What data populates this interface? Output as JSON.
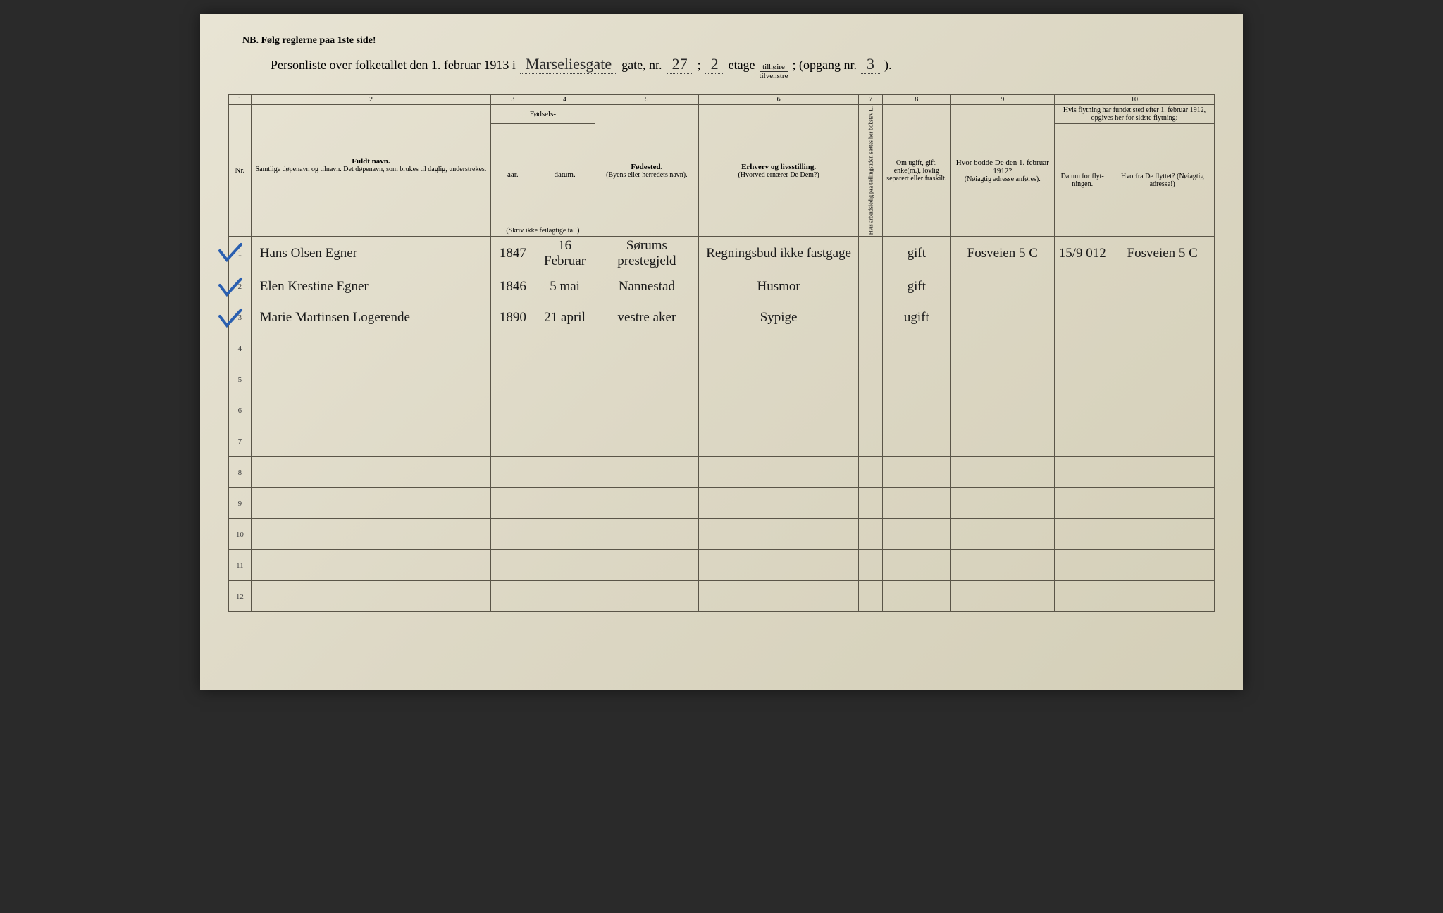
{
  "colors": {
    "paper_bg_start": "#e8e4d4",
    "paper_bg_end": "#d4cfb8",
    "border": "#5a5548",
    "ink": "#1a1a1a",
    "checkmark": "#2a5fb0"
  },
  "header": {
    "nb": "NB.  Følg reglerne paa 1ste side!",
    "title_prefix": "Personliste over folketallet den 1. februar 1913 i",
    "street": "Marseliesgate",
    "gate_label": "gate, nr.",
    "gate_nr": "27",
    "semicolon": ";",
    "etage_nr": "2",
    "etage_label": "etage",
    "frac_top": "tilhøire",
    "frac_bot": "tilvenstre",
    "opgang_label": "; (opgang nr.",
    "opgang_nr": "3",
    "opgang_close": ")."
  },
  "colnums": [
    "1",
    "2",
    "3",
    "4",
    "5",
    "6",
    "7",
    "8",
    "9",
    "10"
  ],
  "headers": {
    "nr": "Nr.",
    "fuldt_navn": "Fuldt navn.",
    "fuldt_sub": "Samtlige døpenavn og tilnavn. Det døpenavn, som brukes til daglig, understrekes.",
    "fodsels": "Fødsels-",
    "aar": "aar.",
    "datum": "datum.",
    "skriv": "(Skriv ikke feilagtige tal!)",
    "fodested": "Fødested.",
    "fodested_sub": "(Byens eller herredets navn).",
    "erhverv": "Erhverv og livsstilling.",
    "erhverv_sub": "(Hvorved ernærer De Dem?)",
    "col7": "Hvis arbeidsledig paa tællingstiden sættes her bokstav L.",
    "col8": "Om ugift, gift, enke(m.), lovlig separert eller fraskilt.",
    "col9": "Hvor bodde De den 1. februar 1912?",
    "col9_sub": "(Nøiagtig adresse anføres).",
    "col10": "Hvis flytning har fundet sted efter 1. februar 1912, opgives her for sidste flytning:",
    "col10a": "Datum for flyt-ningen.",
    "col10b": "Hvorfra De flyttet? (Nøiagtig adresse!)"
  },
  "rows": [
    {
      "nr": "1",
      "check": true,
      "name": "Hans Olsen Egner",
      "aar": "1847",
      "datum": "16 Februar",
      "fodested": "Sørums prestegjeld",
      "erhverv": "Regningsbud ikke fastgage",
      "col7": "",
      "col8": "gift",
      "col9": "Fosveien 5 C",
      "col10a": "15/9 012",
      "col10b": "Fosveien 5 C"
    },
    {
      "nr": "2",
      "check": true,
      "name": "Elen Krestine Egner",
      "aar": "1846",
      "datum": "5 mai",
      "fodested": "Nannestad",
      "erhverv": "Husmor",
      "col7": "",
      "col8": "gift",
      "col9": "",
      "col10a": "",
      "col10b": ""
    },
    {
      "nr": "3",
      "check": true,
      "name": "Marie Martinsen Logerende",
      "aar": "1890",
      "datum": "21 april",
      "fodested": "vestre aker",
      "erhverv": "Sypige",
      "col7": "",
      "col8": "ugift",
      "col9": "",
      "col10a": "",
      "col10b": ""
    },
    {
      "nr": "4",
      "check": false,
      "name": "",
      "aar": "",
      "datum": "",
      "fodested": "",
      "erhverv": "",
      "col7": "",
      "col8": "",
      "col9": "",
      "col10a": "",
      "col10b": ""
    },
    {
      "nr": "5",
      "check": false,
      "name": "",
      "aar": "",
      "datum": "",
      "fodested": "",
      "erhverv": "",
      "col7": "",
      "col8": "",
      "col9": "",
      "col10a": "",
      "col10b": ""
    },
    {
      "nr": "6",
      "check": false,
      "name": "",
      "aar": "",
      "datum": "",
      "fodested": "",
      "erhverv": "",
      "col7": "",
      "col8": "",
      "col9": "",
      "col10a": "",
      "col10b": ""
    },
    {
      "nr": "7",
      "check": false,
      "name": "",
      "aar": "",
      "datum": "",
      "fodested": "",
      "erhverv": "",
      "col7": "",
      "col8": "",
      "col9": "",
      "col10a": "",
      "col10b": ""
    },
    {
      "nr": "8",
      "check": false,
      "name": "",
      "aar": "",
      "datum": "",
      "fodested": "",
      "erhverv": "",
      "col7": "",
      "col8": "",
      "col9": "",
      "col10a": "",
      "col10b": ""
    },
    {
      "nr": "9",
      "check": false,
      "name": "",
      "aar": "",
      "datum": "",
      "fodested": "",
      "erhverv": "",
      "col7": "",
      "col8": "",
      "col9": "",
      "col10a": "",
      "col10b": ""
    },
    {
      "nr": "10",
      "check": false,
      "name": "",
      "aar": "",
      "datum": "",
      "fodested": "",
      "erhverv": "",
      "col7": "",
      "col8": "",
      "col9": "",
      "col10a": "",
      "col10b": ""
    },
    {
      "nr": "11",
      "check": false,
      "name": "",
      "aar": "",
      "datum": "",
      "fodested": "",
      "erhverv": "",
      "col7": "",
      "col8": "",
      "col9": "",
      "col10a": "",
      "col10b": ""
    },
    {
      "nr": "12",
      "check": false,
      "name": "",
      "aar": "",
      "datum": "",
      "fodested": "",
      "erhverv": "",
      "col7": "",
      "col8": "",
      "col9": "",
      "col10a": "",
      "col10b": ""
    }
  ]
}
